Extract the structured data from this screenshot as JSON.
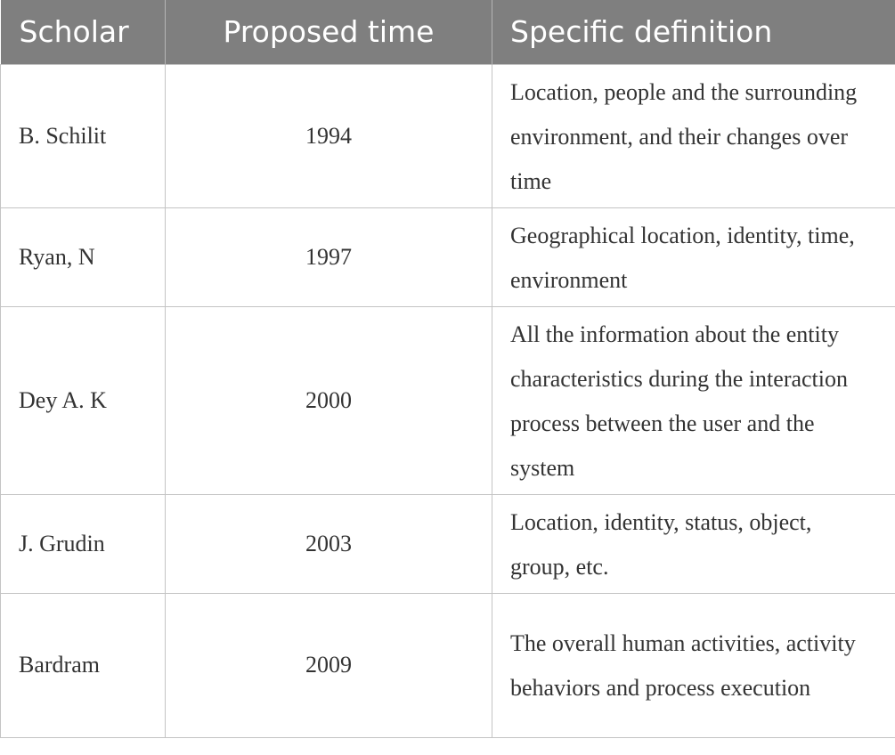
{
  "table": {
    "headers": [
      "Scholar",
      "Proposed time",
      "Specific definition"
    ],
    "rows": [
      {
        "scholar": "B. Schilit",
        "year": "1994",
        "definition": "Location, people and the surrounding environment, and their changes over time"
      },
      {
        "scholar": "Ryan, N",
        "year": "1997",
        "definition": "Geographical location, identity, time, environment"
      },
      {
        "scholar": "Dey A. K",
        "year": "2000",
        "definition": "All the information about the entity characteristics during the interaction process between the user and the system"
      },
      {
        "scholar": "J. Grudin",
        "year": "2003",
        "definition": "Location, identity, status, object, group, etc."
      },
      {
        "scholar": "Bardram",
        "year": "2009",
        "definition": "The overall human activities, activity behaviors and process execution"
      }
    ]
  },
  "colors": {
    "header_background": "#7f7f7f",
    "header_text": "#ffffff",
    "grid_line": "#c4c4c4",
    "body_text": "#333333"
  }
}
